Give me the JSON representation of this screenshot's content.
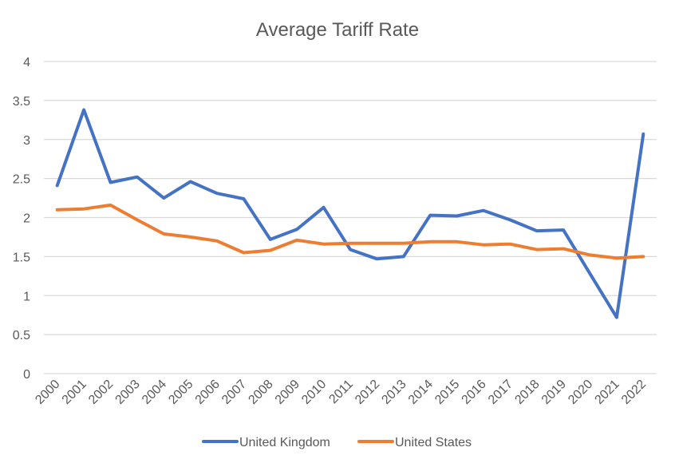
{
  "chart_data": {
    "type": "line",
    "title": "Average Tariff Rate",
    "xlabel": "",
    "ylabel": "",
    "ylim": [
      0,
      4
    ],
    "yticks": [
      "0",
      "0.5",
      "1",
      "1.5",
      "2",
      "2.5",
      "3",
      "3.5",
      "4"
    ],
    "grid": true,
    "legend_position": "bottom",
    "categories": [
      "2000",
      "2001",
      "2002",
      "2003",
      "2004",
      "2005",
      "2006",
      "2007",
      "2008",
      "2009",
      "2010",
      "2011",
      "2012",
      "2013",
      "2014",
      "2015",
      "2016",
      "2017",
      "2018",
      "2019",
      "2020",
      "2021",
      "2022"
    ],
    "series": [
      {
        "name": "United Kingdom",
        "color": "#4472C4",
        "values": [
          2.41,
          3.38,
          2.45,
          2.52,
          2.25,
          2.46,
          2.31,
          2.24,
          1.72,
          1.85,
          2.13,
          1.59,
          1.47,
          1.5,
          2.03,
          2.02,
          2.09,
          1.97,
          1.83,
          1.84,
          1.28,
          0.72,
          3.07
        ]
      },
      {
        "name": "United States",
        "color": "#ED7D31",
        "values": [
          2.1,
          2.11,
          2.16,
          1.97,
          1.79,
          1.75,
          1.7,
          1.55,
          1.58,
          1.71,
          1.66,
          1.67,
          1.67,
          1.67,
          1.69,
          1.69,
          1.65,
          1.66,
          1.59,
          1.6,
          1.52,
          1.48,
          1.5
        ]
      }
    ]
  }
}
